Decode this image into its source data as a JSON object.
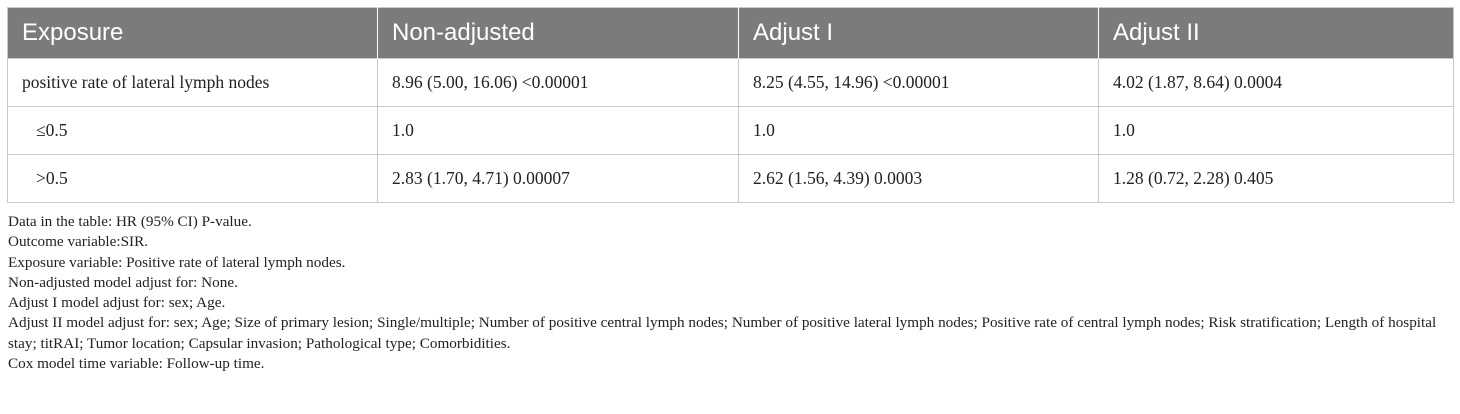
{
  "table": {
    "headers": [
      "Exposure",
      "Non-adjusted",
      "Adjust I",
      "Adjust II"
    ],
    "rows": [
      {
        "label": "positive rate of lateral lymph nodes",
        "non_adjusted": "8.96 (5.00, 16.06) <0.00001",
        "adjust_1": "8.25 (4.55, 14.96) <0.00001",
        "adjust_2": "4.02 (1.87, 8.64) 0.0004"
      },
      {
        "label": "≤0.5",
        "non_adjusted": "1.0",
        "adjust_1": "1.0",
        "adjust_2": "1.0"
      },
      {
        "label": ">0.5",
        "non_adjusted": "2.83 (1.70, 4.71) 0.00007",
        "adjust_1": "2.62 (1.56, 4.39) 0.0003",
        "adjust_2": "1.28 (0.72, 2.28) 0.405"
      }
    ]
  },
  "notes": [
    "Data in the table: HR (95% CI) P-value.",
    "Outcome variable:SIR.",
    "Exposure variable: Positive rate of lateral lymph nodes.",
    "Non-adjusted model adjust for: None.",
    "Adjust I model adjust for: sex; Age.",
    "Adjust II model adjust for: sex; Age; Size of primary lesion; Single/multiple; Number of positive central lymph nodes; Number of positive lateral lymph nodes; Positive rate of central lymph nodes; Risk stratification; Length of hospital stay; titRAI; Tumor location; Capsular invasion; Pathological type; Comorbidities.",
    "Cox model time variable: Follow-up time."
  ]
}
